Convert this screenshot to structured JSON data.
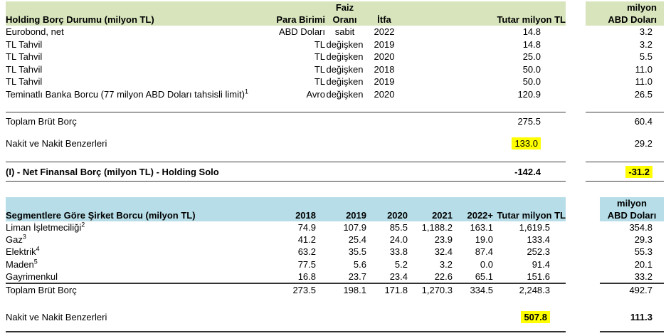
{
  "colors": {
    "holding_header_bg": "#d7e4bc",
    "segment_header_bg": "#b7dee8",
    "highlight": "#ffff00",
    "rule_line": "#3c3c3c"
  },
  "holding_table": {
    "title": "Holding Borç Durumu (milyon TL)",
    "col_currency": "Para Birimi",
    "col_interest_line1": "Faiz",
    "col_interest_line2": "Oranı",
    "col_maturity": "İtfa",
    "col_amount": "Tutar milyon TL",
    "col_usd_line1": "milyon",
    "col_usd_line2": "ABD Doları",
    "rows": [
      {
        "label": "Eurobond, net",
        "sup": "",
        "currency": "ABD Doları",
        "rate": "sabit",
        "maturity": "2022",
        "amount": "14.8",
        "usd": "3.2"
      },
      {
        "label": "TL Tahvil",
        "sup": "",
        "currency": "TL",
        "rate": "değişken",
        "maturity": "2019",
        "amount": "14.8",
        "usd": "3.2"
      },
      {
        "label": "TL Tahvil",
        "sup": "",
        "currency": "TL",
        "rate": "değişken",
        "maturity": "2020",
        "amount": "25.0",
        "usd": "5.5"
      },
      {
        "label": "TL Tahvil",
        "sup": "",
        "currency": "TL",
        "rate": "değişken",
        "maturity": "2018",
        "amount": "50.0",
        "usd": "11.0"
      },
      {
        "label": "TL Tahvil",
        "sup": "",
        "currency": "TL",
        "rate": "değişken",
        "maturity": "2019",
        "amount": "50.0",
        "usd": "11.0"
      },
      {
        "label": "Teminatlı Banka Borcu (77 milyon ABD Doları tahsisli limit)",
        "sup": "1",
        "currency": "Avro",
        "rate": "değişken",
        "maturity": "2020",
        "amount": "120.9",
        "usd": "26.5"
      }
    ],
    "gross_debt": {
      "label": "Toplam Brüt Borç",
      "amount": "275.5",
      "usd": "60.4"
    },
    "cash": {
      "label": "Nakit ve Nakit Benzerleri",
      "amount": "133.0",
      "usd": "29.2"
    },
    "net_debt": {
      "label": "(I) - Net Finansal Borç  (milyon TL) - Holding Solo",
      "amount": "-142.4",
      "usd": "-31.2"
    }
  },
  "segment_table": {
    "title": "Segmentlere Göre Şirket  Borcu (milyon TL)",
    "year_cols": [
      "2018",
      "2019",
      "2020",
      "2021",
      "2022+"
    ],
    "col_amount": "Tutar milyon TL",
    "col_usd_line1": "milyon",
    "col_usd_line2": "ABD Doları",
    "rows": [
      {
        "label": "Liman İşletmeciliği",
        "sup": "2",
        "values": [
          "74.9",
          "107.9",
          "85.5",
          "1,188.2",
          "163.1"
        ],
        "amount": "1,619.5",
        "usd": "354.8"
      },
      {
        "label": "Gaz",
        "sup": "3",
        "values": [
          "41.2",
          "25.4",
          "24.0",
          "23.9",
          "19.0"
        ],
        "amount": "133.4",
        "usd": "29.3"
      },
      {
        "label": "Elektrik",
        "sup": "4",
        "values": [
          "63.2",
          "35.5",
          "33.8",
          "32.4",
          "87.4"
        ],
        "amount": "252.3",
        "usd": "55.3"
      },
      {
        "label": "Maden",
        "sup": "5",
        "values": [
          "77.5",
          "5.6",
          "5.2",
          "3.2",
          "0.0"
        ],
        "amount": "91.4",
        "usd": "20.1"
      },
      {
        "label": "Gayrimenkul",
        "sup": "",
        "values": [
          "16.8",
          "23.7",
          "23.4",
          "22.6",
          "65.1"
        ],
        "amount": "151.6",
        "usd": "33.2"
      }
    ],
    "gross_debt": {
      "label": "Toplam Brüt Borç",
      "values": [
        "273.5",
        "198.1",
        "171.8",
        "1,270.3",
        "334.5"
      ],
      "amount": "2,248.3",
      "usd": "492.7"
    },
    "cash": {
      "label": "Nakit ve Nakit Benzerleri",
      "amount": "507.8",
      "usd": "111.3"
    }
  }
}
